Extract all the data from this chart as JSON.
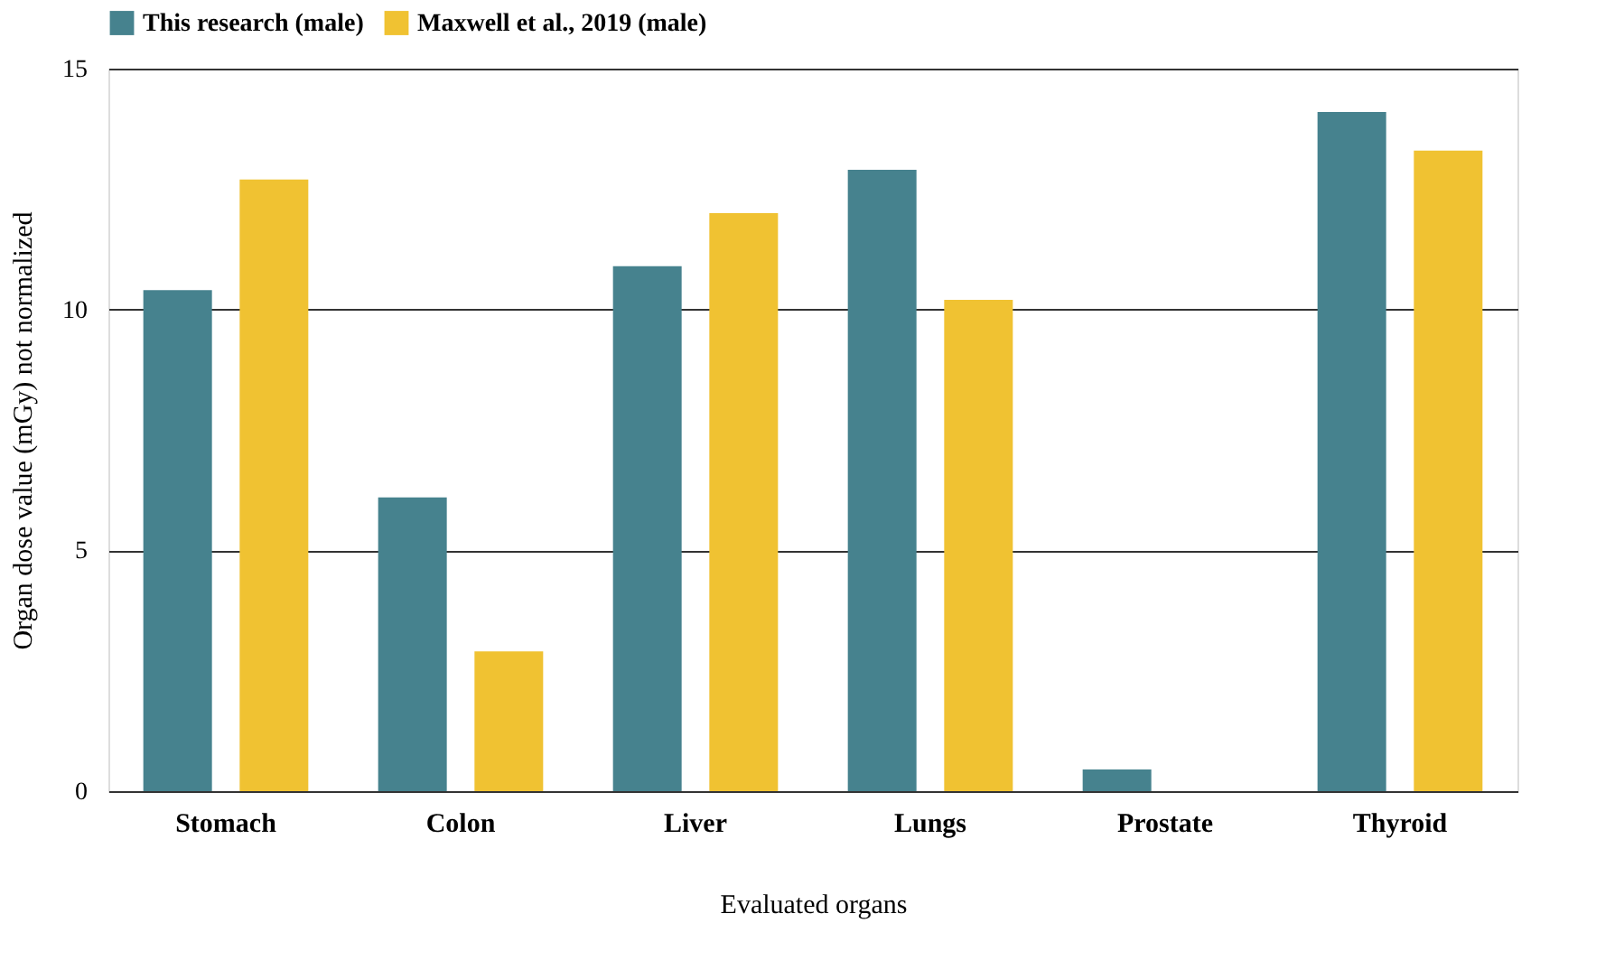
{
  "chart_data": {
    "type": "bar",
    "xlabel": "Evaluated organs",
    "ylabel": "Organ dose value (mGy) not normalized",
    "categories": [
      "Stomach",
      "Colon",
      "Liver",
      "Lungs",
      "Prostate",
      "Thyroid"
    ],
    "series": [
      {
        "name": "This research (male)",
        "color": "#46828e",
        "values": [
          10.4,
          6.1,
          10.9,
          12.9,
          0.45,
          14.1
        ]
      },
      {
        "name": "Maxwell et al., 2019 (male)",
        "color": "#f0c232",
        "values": [
          12.7,
          2.9,
          12.0,
          10.2,
          null,
          13.3
        ]
      }
    ],
    "ylim": [
      0,
      15
    ],
    "yticks": [
      0,
      5,
      10,
      15
    ],
    "grid": "y",
    "legend": "top"
  }
}
